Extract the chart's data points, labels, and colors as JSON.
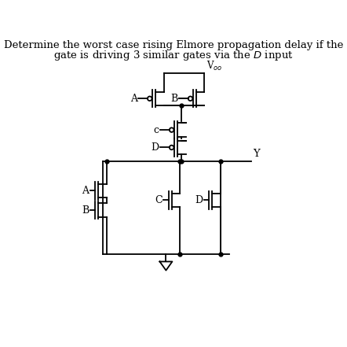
{
  "title_line1": "Determine the worst case rising Elmore propagation delay if the",
  "title_line2": "gate is driving 3 similar gates via the ",
  "title_italic": "D",
  "title_end": " input",
  "bg_color": "#ffffff",
  "line_color": "#000000",
  "text_color": "#000000",
  "title_fontsize": 9.5,
  "label_fontsize": 9.0,
  "lw": 1.3
}
